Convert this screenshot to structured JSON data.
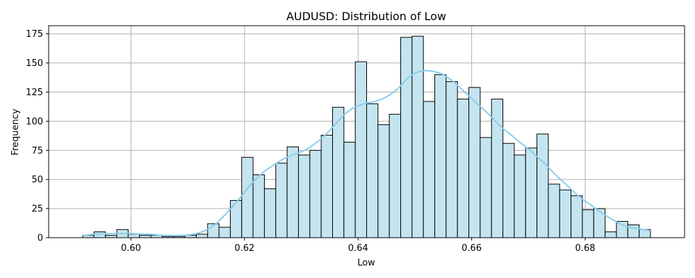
{
  "chart_data": {
    "type": "bar",
    "title": "AUDUSD: Distribution of Low",
    "xlabel": "Low",
    "ylabel": "Frequency",
    "xlim": [
      0.5855,
      0.6975
    ],
    "ylim": [
      0,
      182
    ],
    "x_ticks": [
      0.6,
      0.62,
      0.64,
      0.66,
      0.68
    ],
    "x_tick_labels": [
      "0.60",
      "0.62",
      "0.64",
      "0.66",
      "0.68"
    ],
    "y_ticks": [
      0,
      25,
      50,
      75,
      100,
      125,
      150,
      175
    ],
    "y_tick_labels": [
      "0",
      "25",
      "50",
      "75",
      "100",
      "125",
      "150",
      "175"
    ],
    "grid": true,
    "bin_start": 0.5915,
    "bin_width": 0.002,
    "counts": [
      2,
      5,
      2,
      7,
      3,
      2,
      2,
      1,
      1,
      2,
      3,
      12,
      9,
      32,
      69,
      54,
      42,
      64,
      78,
      71,
      75,
      88,
      112,
      82,
      151,
      115,
      97,
      106,
      172,
      173,
      117,
      140,
      134,
      119,
      129,
      86,
      119,
      81,
      71,
      77,
      89,
      46,
      41,
      36,
      24,
      25,
      5,
      14,
      11,
      7
    ],
    "kde": {
      "x": [
        0.5915,
        0.594,
        0.597,
        0.6,
        0.603,
        0.606,
        0.609,
        0.611,
        0.613,
        0.615,
        0.617,
        0.619,
        0.621,
        0.623,
        0.625,
        0.627,
        0.629,
        0.631,
        0.633,
        0.635,
        0.637,
        0.639,
        0.641,
        0.643,
        0.645,
        0.647,
        0.649,
        0.651,
        0.653,
        0.655,
        0.657,
        0.659,
        0.661,
        0.663,
        0.665,
        0.667,
        0.669,
        0.671,
        0.673,
        0.675,
        0.677,
        0.679,
        0.681,
        0.683,
        0.685,
        0.687,
        0.689,
        0.6915
      ],
      "y": [
        2,
        3,
        3.5,
        3.5,
        3,
        2,
        2,
        3,
        6,
        12,
        22,
        33,
        45,
        55,
        62,
        68,
        72,
        76,
        83,
        92,
        103,
        111,
        115,
        117,
        121,
        128,
        138,
        143,
        143,
        140,
        133,
        124,
        115,
        106,
        96,
        88,
        80,
        72,
        63,
        53,
        44,
        35,
        28,
        21,
        15,
        10,
        8,
        6
      ]
    },
    "bar_fill": "#c4e4f0",
    "bar_edge": "#000000",
    "kde_color": "#87ceeb",
    "grid_color": "#b0b0b0"
  }
}
